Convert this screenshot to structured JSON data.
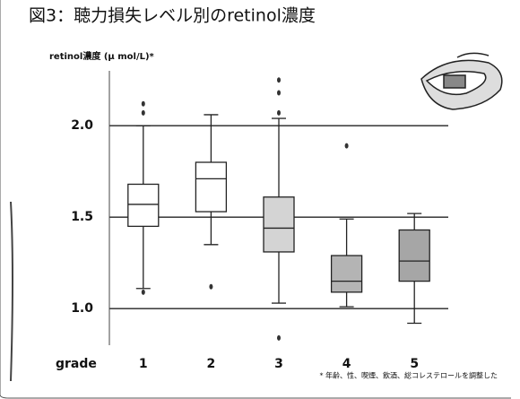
{
  "chart_data": {
    "type": "box",
    "title": "図3：聴力損失レベル別のretinol濃度",
    "y_label": "retinol濃度 (μ mol/L)*",
    "x_label": "grade",
    "footnote": "* 年齢、性、喫煙、飲酒、総コレステロールを調整した",
    "categories": [
      "1",
      "2",
      "3",
      "4",
      "5"
    ],
    "ylim": [
      0.8,
      2.3
    ],
    "yticks": [
      {
        "value": 1.0,
        "label": "1.0"
      },
      {
        "value": 1.5,
        "label": "1.5"
      },
      {
        "value": 2.0,
        "label": "2.0"
      }
    ],
    "grid": true,
    "boxes": [
      {
        "whislo": 1.11,
        "q1": 1.45,
        "med": 1.57,
        "q3": 1.68,
        "whishi": 2.0,
        "fliers": [
          2.12,
          2.07,
          1.09
        ],
        "color": "#ffffff"
      },
      {
        "whislo": 1.35,
        "q1": 1.53,
        "med": 1.71,
        "q3": 1.8,
        "whishi": 2.06,
        "fliers": [
          1.12
        ],
        "color": "#ffffff"
      },
      {
        "whislo": 1.03,
        "q1": 1.31,
        "med": 1.44,
        "q3": 1.61,
        "whishi": 2.04,
        "fliers": [
          2.25,
          2.18,
          2.07,
          0.84
        ],
        "color": "#d4d4d4"
      },
      {
        "whislo": 1.01,
        "q1": 1.09,
        "med": 1.15,
        "q3": 1.29,
        "whishi": 1.49,
        "fliers": [
          1.89
        ],
        "color": "#b4b4b4"
      },
      {
        "whislo": 0.92,
        "q1": 1.15,
        "med": 1.26,
        "q3": 1.43,
        "whishi": 1.52,
        "fliers": [],
        "color": "#a6a6a6"
      }
    ]
  }
}
